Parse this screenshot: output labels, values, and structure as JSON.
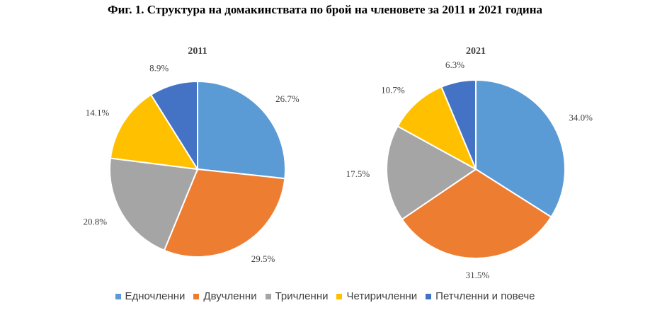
{
  "title": "Фиг. 1. Структура на домакинствата по брой на членовете за 2011 и 2021 година",
  "legend_items": [
    {
      "label": "Едночленни",
      "color": "#5B9BD5"
    },
    {
      "label": "Двучленни",
      "color": "#ED7D31"
    },
    {
      "label": "Тричленни",
      "color": "#A5A5A5"
    },
    {
      "label": "Четиричленни",
      "color": "#FFC000"
    },
    {
      "label": "Петчленни и повече",
      "color": "#4472C4"
    }
  ],
  "chart_data": [
    {
      "type": "pie",
      "title": "2011",
      "categories": [
        "Едночленни",
        "Двучленни",
        "Тричленни",
        "Четиричленни",
        "Петчленни и повече"
      ],
      "values": [
        26.7,
        29.5,
        20.8,
        14.1,
        8.9
      ],
      "labels": [
        "26.7%",
        "29.5%",
        "20.8%",
        "14.1%",
        "8.9%"
      ],
      "legend": "bottom"
    },
    {
      "type": "pie",
      "title": "2021",
      "categories": [
        "Едночленни",
        "Двучленни",
        "Тричленни",
        "Четиричленни",
        "Петчленни и повече"
      ],
      "values": [
        34.0,
        31.5,
        17.5,
        10.7,
        6.3
      ],
      "labels": [
        "34.0%",
        "31.5%",
        "17.5%",
        "10.7%",
        "6.3%"
      ],
      "legend": "bottom"
    }
  ]
}
